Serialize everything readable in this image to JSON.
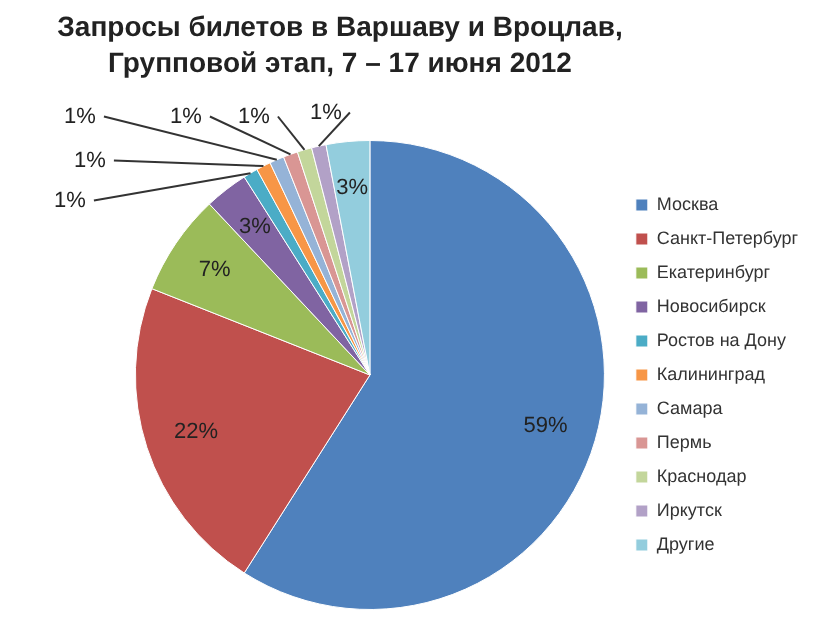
{
  "chart_data": {
    "type": "pie",
    "title": "Запросы билетов в Варшаву и Вроцлав, Групповой этап, 7 – 17 июня 2012",
    "categories": [
      "Москва",
      "Санкт-Петербург",
      "Екатеринбург",
      "Новосибирск",
      "Ростов на Дону",
      "Калининград",
      "Самара",
      "Пермь",
      "Краснодар",
      "Иркутск",
      "Другие"
    ],
    "values": [
      59,
      22,
      7,
      3,
      1,
      1,
      1,
      1,
      1,
      1,
      3
    ],
    "colors": [
      "#4f81bd",
      "#c0504d",
      "#9bbb59",
      "#8064a2",
      "#4bacc6",
      "#f79646",
      "#95b3d7",
      "#d99694",
      "#c3d69b",
      "#b2a1c7",
      "#93cddd"
    ],
    "value_labels": [
      "59%",
      "22%",
      "7%",
      "3%",
      "1%",
      "1%",
      "1%",
      "1%",
      "1%",
      "1%",
      "3%"
    ],
    "legend": "right"
  }
}
